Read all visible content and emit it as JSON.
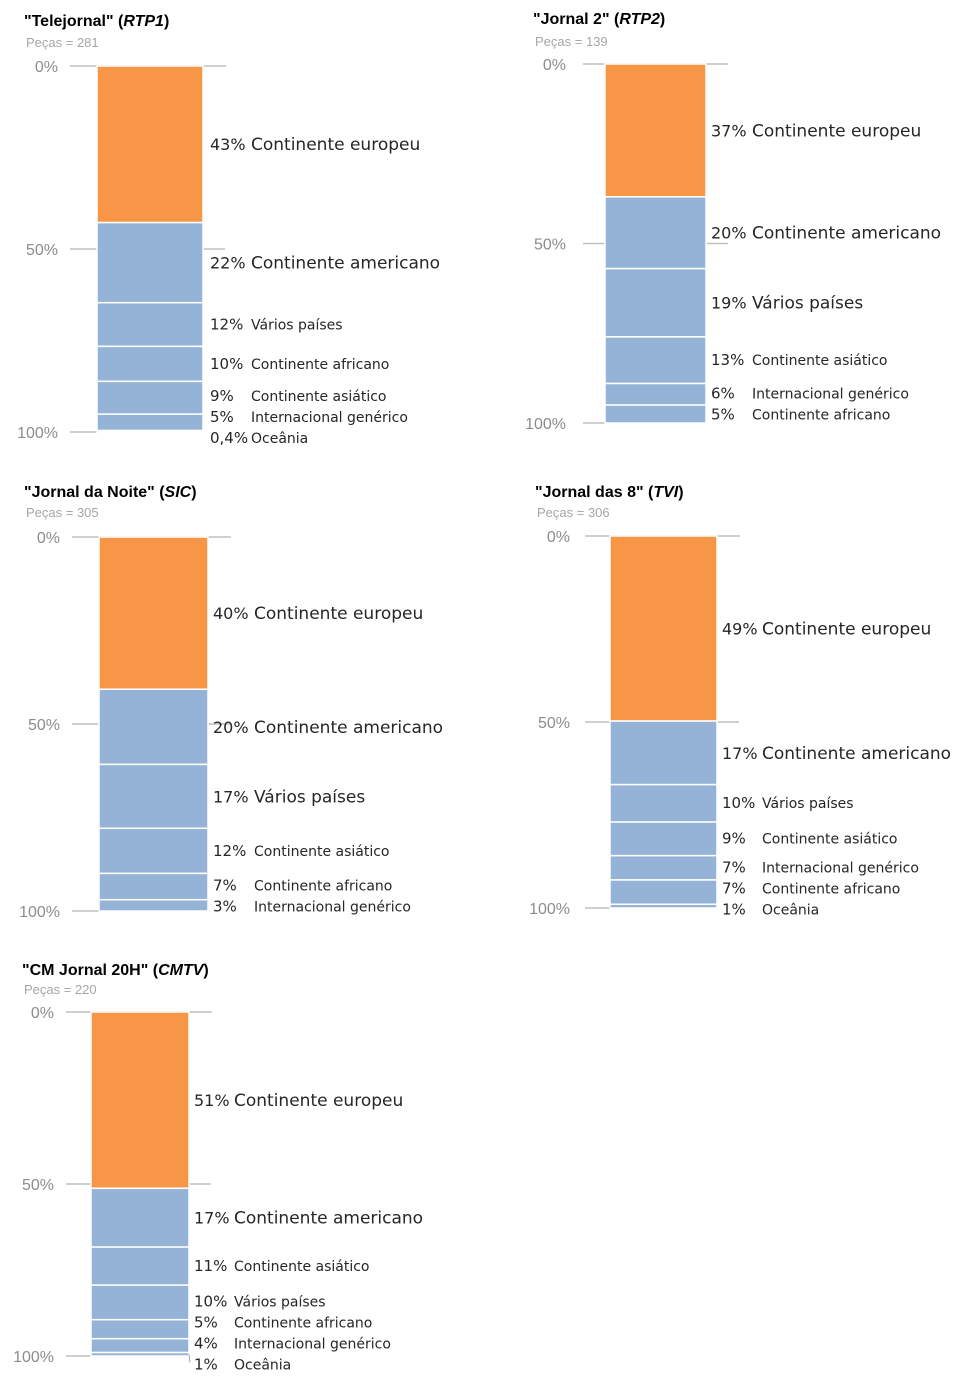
{
  "chart_data": [
    {
      "type": "bar",
      "stacked": true,
      "title": "\"Telejornal\" (",
      "title_channel": "RTP1",
      "title_end": ")",
      "subtitle": "Peças = 281",
      "yticks": [
        "0%",
        "50%",
        "100%"
      ],
      "ylim": [
        0,
        100
      ],
      "segments": [
        {
          "value": 43,
          "pct_label": "43%",
          "label": "Continente europeu",
          "color": "#f79646"
        },
        {
          "value": 22,
          "pct_label": "22%",
          "label": "Continente americano",
          "color": "#95b3d7"
        },
        {
          "value": 12,
          "pct_label": "12%",
          "label": "Vários países",
          "color": "#95b3d7"
        },
        {
          "value": 9.6,
          "pct_label": "10%",
          "label": "Continente africano",
          "color": "#95b3d7"
        },
        {
          "value": 9,
          "pct_label": "9%",
          "label": "Continente asiático",
          "color": "#95b3d7"
        },
        {
          "value": 4.5,
          "pct_label": "5%",
          "label": "Internacional genérico",
          "color": "#95b3d7"
        },
        {
          "value": 0.4,
          "pct_label": "0,4%",
          "label": "Oceânia",
          "color": "#95b3d7"
        }
      ]
    },
    {
      "type": "bar",
      "stacked": true,
      "title": "\"Jornal 2\" (",
      "title_channel": "RTP2",
      "title_end": ")",
      "subtitle": "Peças = 139",
      "yticks": [
        "0%",
        "50%",
        "100%"
      ],
      "ylim": [
        0,
        100
      ],
      "segments": [
        {
          "value": 37,
          "pct_label": "37%",
          "label": "Continente europeu",
          "color": "#f79646"
        },
        {
          "value": 20,
          "pct_label": "20%",
          "label": "Continente americano",
          "color": "#95b3d7"
        },
        {
          "value": 19,
          "pct_label": "19%",
          "label": "Vários países",
          "color": "#95b3d7"
        },
        {
          "value": 13,
          "pct_label": "13%",
          "label": "Continente asiático",
          "color": "#95b3d7"
        },
        {
          "value": 6,
          "pct_label": "6%",
          "label": "Internacional genérico",
          "color": "#95b3d7"
        },
        {
          "value": 5,
          "pct_label": "5%",
          "label": "Continente africano",
          "color": "#95b3d7"
        }
      ]
    },
    {
      "type": "bar",
      "stacked": true,
      "title": "\"Jornal da Noite\" (",
      "title_channel": "SIC",
      "title_end": ")",
      "subtitle": "Peças = 305",
      "yticks": [
        "0%",
        "50%",
        "100%"
      ],
      "ylim": [
        0,
        100
      ],
      "segments": [
        {
          "value": 40.5,
          "pct_label": "40%",
          "label": "Continente europeu",
          "color": "#f79646"
        },
        {
          "value": 20,
          "pct_label": "20%",
          "label": "Continente americano",
          "color": "#95b3d7"
        },
        {
          "value": 17,
          "pct_label": "17%",
          "label": "Vários países",
          "color": "#95b3d7"
        },
        {
          "value": 12,
          "pct_label": "12%",
          "label": "Continente asiático",
          "color": "#95b3d7"
        },
        {
          "value": 7,
          "pct_label": "7%",
          "label": "Continente africano",
          "color": "#95b3d7"
        },
        {
          "value": 3,
          "pct_label": "3%",
          "label": "Internacional genérico",
          "color": "#95b3d7"
        }
      ]
    },
    {
      "type": "bar",
      "stacked": true,
      "title": "\"Jornal das 8\" (",
      "title_channel": "TVI",
      "title_end": ")",
      "subtitle": "Peças = 306",
      "yticks": [
        "0%",
        "50%",
        "100%"
      ],
      "ylim": [
        0,
        100
      ],
      "segments": [
        {
          "value": 49.5,
          "pct_label": "49%",
          "label": "Continente europeu",
          "color": "#f79646"
        },
        {
          "value": 17,
          "pct_label": "17%",
          "label": "Continente americano",
          "color": "#95b3d7"
        },
        {
          "value": 10,
          "pct_label": "10%",
          "label": "Vários países",
          "color": "#95b3d7"
        },
        {
          "value": 9,
          "pct_label": "9%",
          "label": "Continente asiático",
          "color": "#95b3d7"
        },
        {
          "value": 6.5,
          "pct_label": "7%",
          "label": "Internacional genérico",
          "color": "#95b3d7"
        },
        {
          "value": 6.5,
          "pct_label": "7%",
          "label": "Continente africano",
          "color": "#95b3d7"
        },
        {
          "value": 1,
          "pct_label": "1%",
          "label": "Oceânia",
          "color": "#95b3d7"
        }
      ]
    },
    {
      "type": "bar",
      "stacked": true,
      "title": "\"CM Jornal 20H\" (",
      "title_channel": "CMTV",
      "title_end": ")",
      "subtitle": "Peças = 220",
      "yticks": [
        "0%",
        "50%",
        "100%"
      ],
      "ylim": [
        0,
        100
      ],
      "segments": [
        {
          "value": 51,
          "pct_label": "51%",
          "label": "Continente europeu",
          "color": "#f79646"
        },
        {
          "value": 17,
          "pct_label": "17%",
          "label": "Continente americano",
          "color": "#95b3d7"
        },
        {
          "value": 11,
          "pct_label": "11%",
          "label": "Continente asiático",
          "color": "#95b3d7"
        },
        {
          "value": 10,
          "pct_label": "10%",
          "label": "Vários países",
          "color": "#95b3d7"
        },
        {
          "value": 5.5,
          "pct_label": "5%",
          "label": "Continente africano",
          "color": "#95b3d7"
        },
        {
          "value": 4,
          "pct_label": "4%",
          "label": "Internacional genérico",
          "color": "#95b3d7"
        },
        {
          "value": 1,
          "pct_label": "1%",
          "label": "Oceânia",
          "color": "#95b3d7"
        }
      ]
    }
  ]
}
